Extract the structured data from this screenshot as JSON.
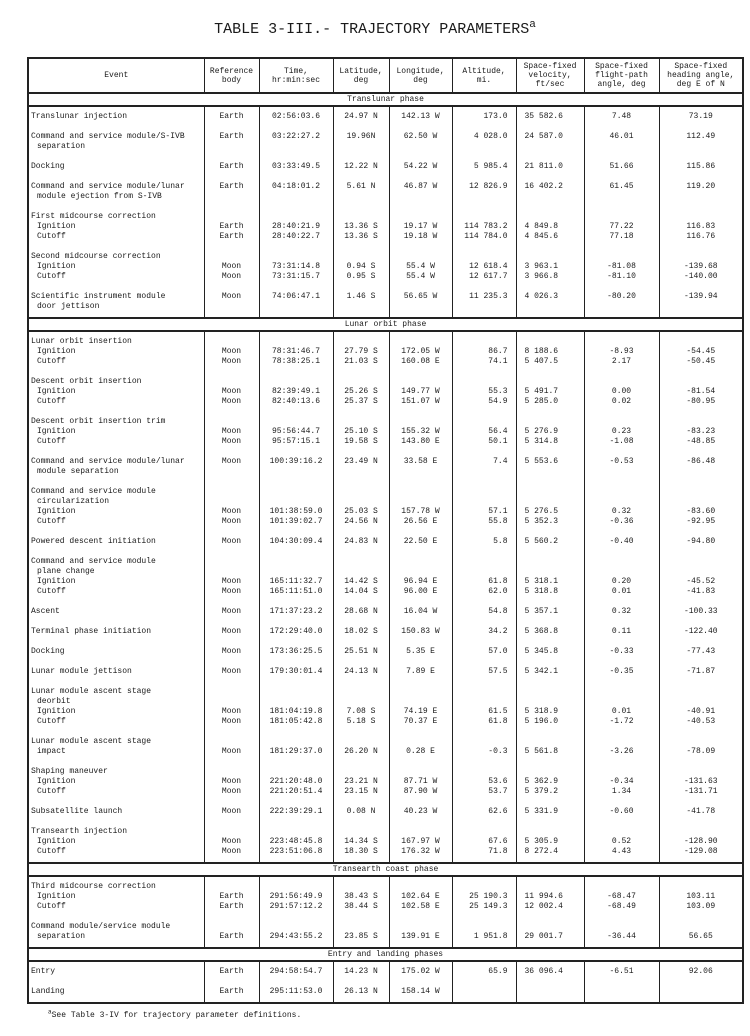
{
  "title": "TABLE 3-III.- TRAJECTORY PARAMETERS",
  "title_footnote_mark": "a",
  "columns": [
    "Event",
    "Reference body",
    "Time, hr:min:sec",
    "Latitude, deg",
    "Longitude, deg",
    "Altitude, mi.",
    "Space-fixed velocity, ft/sec",
    "Space-fixed flight-path angle, deg",
    "Space-fixed heading angle, deg E of N"
  ],
  "sections": [
    {
      "phase": "Translunar phase",
      "entries": [
        [
          {
            "event": "Translunar injection",
            "ref": "Earth",
            "time": "02:56:03.6",
            "lat": "24.97 N",
            "lon": "142.13 W",
            "alt": "173.0",
            "vel": "35 582.6",
            "fpa": "7.48",
            "hdg": "73.19"
          }
        ],
        [
          {
            "event": "Command and service module/S-IVB",
            "ref": "Earth",
            "time": "03:22:27.2",
            "lat": "19.96N",
            "lon": "62.50 W",
            "alt": "4 028.0",
            "vel": "24 587.0",
            "fpa": "46.01",
            "hdg": "112.49"
          },
          {
            "event": "separation",
            "sub": true
          }
        ],
        [
          {
            "event": "Docking",
            "ref": "Earth",
            "time": "03:33:49.5",
            "lat": "12.22 N",
            "lon": "54.22 W",
            "alt": "5 985.4",
            "vel": "21 811.0",
            "fpa": "51.66",
            "hdg": "115.86"
          }
        ],
        [
          {
            "event": "Command and service module/lunar",
            "ref": "Earth",
            "time": "04:18:01.2",
            "lat": "5.61 N",
            "lon": "46.87 W",
            "alt": "12 826.9",
            "vel": "16 402.2",
            "fpa": "61.45",
            "hdg": "119.20"
          },
          {
            "event": "module ejection from S-IVB",
            "sub": true
          }
        ],
        [
          {
            "event": "First midcourse correction"
          },
          {
            "event": "Ignition",
            "sub": true,
            "ref": "Earth",
            "time": "28:40:21.9",
            "lat": "13.36 S",
            "lon": "19.17 W",
            "alt": "114 783.2",
            "vel": "4 849.8",
            "fpa": "77.22",
            "hdg": "116.83"
          },
          {
            "event": "Cutoff",
            "sub": true,
            "ref": "Earth",
            "time": "28:40:22.7",
            "lat": "13.36 S",
            "lon": "19.18 W",
            "alt": "114 784.0",
            "vel": "4 845.6",
            "fpa": "77.18",
            "hdg": "116.76"
          }
        ],
        [
          {
            "event": "Second midcourse correction"
          },
          {
            "event": "Ignition",
            "sub": true,
            "ref": "Moon",
            "time": "73:31:14.8",
            "lat": "0.94 S",
            "lon": "55.4 W",
            "alt": "12 618.4",
            "vel": "3 963.1",
            "fpa": "-81.08",
            "hdg": "-139.68"
          },
          {
            "event": "Cutoff",
            "sub": true,
            "ref": "Moon",
            "time": "73:31:15.7",
            "lat": "0.95 S",
            "lon": "55.4 W",
            "alt": "12 617.7",
            "vel": "3 966.8",
            "fpa": "-81.10",
            "hdg": "-140.00"
          }
        ],
        [
          {
            "event": "Scientific instrument module",
            "ref": "Moon",
            "time": "74:06:47.1",
            "lat": "1.46 S",
            "lon": "56.65 W",
            "alt": "11 235.3",
            "vel": "4 026.3",
            "fpa": "-80.20",
            "hdg": "-139.94"
          },
          {
            "event": "door jettison",
            "sub": true
          }
        ]
      ]
    },
    {
      "phase": "Lunar orbit phase",
      "entries": [
        [
          {
            "event": "Lunar orbit insertion"
          },
          {
            "event": "Ignition",
            "sub": true,
            "ref": "Moon",
            "time": "78:31:46.7",
            "lat": "27.79 S",
            "lon": "172.05 W",
            "alt": "86.7",
            "vel": "8 188.6",
            "fpa": "-8.93",
            "hdg": "-54.45"
          },
          {
            "event": "Cutoff",
            "sub": true,
            "ref": "Moon",
            "time": "78:38:25.1",
            "lat": "21.03 S",
            "lon": "160.08 E",
            "alt": "74.1",
            "vel": "5 407.5",
            "fpa": "2.17",
            "hdg": "-50.45"
          }
        ],
        [
          {
            "event": "Descent orbit insertion"
          },
          {
            "event": "Ignition",
            "sub": true,
            "ref": "Moon",
            "time": "82:39:49.1",
            "lat": "25.26 S",
            "lon": "149.77 W",
            "alt": "55.3",
            "vel": "5 491.7",
            "fpa": "0.00",
            "hdg": "-81.54"
          },
          {
            "event": "Cutoff",
            "sub": true,
            "ref": "Moon",
            "time": "82:40:13.6",
            "lat": "25.37 S",
            "lon": "151.07 W",
            "alt": "54.9",
            "vel": "5 285.0",
            "fpa": "0.02",
            "hdg": "-80.95"
          }
        ],
        [
          {
            "event": "Descent orbit insertion trim"
          },
          {
            "event": "Ignition",
            "sub": true,
            "ref": "Moon",
            "time": "95:56:44.7",
            "lat": "25.10 S",
            "lon": "155.32 W",
            "alt": "56.4",
            "vel": "5 276.9",
            "fpa": "0.23",
            "hdg": "-83.23"
          },
          {
            "event": "Cutoff",
            "sub": true,
            "ref": "Moon",
            "time": "95:57:15.1",
            "lat": "19.58 S",
            "lon": "143.80 E",
            "alt": "50.1",
            "vel": "5 314.8",
            "fpa": "-1.08",
            "hdg": "-48.85"
          }
        ],
        [
          {
            "event": "Command and service module/lunar",
            "ref": "Moon",
            "time": "100:39:16.2",
            "lat": "23.49 N",
            "lon": "33.58 E",
            "alt": "7.4",
            "vel": "5 553.6",
            "fpa": "-0.53",
            "hdg": "-86.48"
          },
          {
            "event": "module separation",
            "sub": true
          }
        ],
        [
          {
            "event": "Command and service module"
          },
          {
            "event": "circularization",
            "sub": true
          },
          {
            "event": "Ignition",
            "sub": true,
            "ref": "Moon",
            "time": "101:38:59.0",
            "lat": "25.03 S",
            "lon": "157.78 W",
            "alt": "57.1",
            "vel": "5 276.5",
            "fpa": "0.32",
            "hdg": "-83.60"
          },
          {
            "event": "Cutoff",
            "sub": true,
            "ref": "Moon",
            "time": "101:39:02.7",
            "lat": "24.56 N",
            "lon": "26.56 E",
            "alt": "55.8",
            "vel": "5 352.3",
            "fpa": "-0.36",
            "hdg": "-92.95"
          }
        ],
        [
          {
            "event": "Powered descent initiation",
            "ref": "Moon",
            "time": "104:30:09.4",
            "lat": "24.83 N",
            "lon": "22.50 E",
            "alt": "5.8",
            "vel": "5 560.2",
            "fpa": "-0.40",
            "hdg": "-94.80"
          }
        ],
        [
          {
            "event": "Command and service module"
          },
          {
            "event": "plane change",
            "sub": true
          },
          {
            "event": "Ignition",
            "sub": true,
            "ref": "Moon",
            "time": "165:11:32.7",
            "lat": "14.42 S",
            "lon": "96.94 E",
            "alt": "61.8",
            "vel": "5 318.1",
            "fpa": "0.20",
            "hdg": "-45.52"
          },
          {
            "event": "Cutoff",
            "sub": true,
            "ref": "Moon",
            "time": "165:11:51.0",
            "lat": "14.04 S",
            "lon": "96.00 E",
            "alt": "62.0",
            "vel": "5 318.8",
            "fpa": "0.01",
            "hdg": "-41.83"
          }
        ],
        [
          {
            "event": "Ascent",
            "ref": "Moon",
            "time": "171:37:23.2",
            "lat": "28.68 N",
            "lon": "16.04 W",
            "alt": "54.8",
            "vel": "5 357.1",
            "fpa": "0.32",
            "hdg": "-100.33"
          }
        ],
        [
          {
            "event": "Terminal phase initiation",
            "ref": "Moon",
            "time": "172:29:40.0",
            "lat": "18.02 S",
            "lon": "150.83 W",
            "alt": "34.2",
            "vel": "5 368.8",
            "fpa": "0.11",
            "hdg": "-122.40"
          }
        ],
        [
          {
            "event": "Docking",
            "ref": "Moon",
            "time": "173:36:25.5",
            "lat": "25.51 N",
            "lon": "5.35 E",
            "alt": "57.0",
            "vel": "5 345.8",
            "fpa": "-0.33",
            "hdg": "-77.43"
          }
        ],
        [
          {
            "event": "Lunar module jettison",
            "ref": "Moon",
            "time": "179:30:01.4",
            "lat": "24.13 N",
            "lon": "7.89 E",
            "alt": "57.5",
            "vel": "5 342.1",
            "fpa": "-0.35",
            "hdg": "-71.87"
          }
        ],
        [
          {
            "event": "Lunar module ascent stage"
          },
          {
            "event": "deorbit",
            "sub": true
          },
          {
            "event": "Ignition",
            "sub": true,
            "ref": "Moon",
            "time": "181:04:19.8",
            "lat": "7.08 S",
            "lon": "74.19 E",
            "alt": "61.5",
            "vel": "5 318.9",
            "fpa": "0.01",
            "hdg": "-40.91"
          },
          {
            "event": "Cutoff",
            "sub": true,
            "ref": "Moon",
            "time": "181:05:42.8",
            "lat": "5.18 S",
            "lon": "70.37 E",
            "alt": "61.8",
            "vel": "5 196.0",
            "fpa": "-1.72",
            "hdg": "-40.53"
          }
        ],
        [
          {
            "event": "Lunar module ascent stage"
          },
          {
            "event": "impact",
            "sub": true,
            "ref": "Moon",
            "time": "181:29:37.0",
            "lat": "26.20 N",
            "lon": "0.28 E",
            "alt": "-0.3",
            "vel": "5 561.8",
            "fpa": "-3.26",
            "hdg": "-78.09"
          }
        ],
        [
          {
            "event": "Shaping maneuver"
          },
          {
            "event": "Ignition",
            "sub": true,
            "ref": "Moon",
            "time": "221:20:48.0",
            "lat": "23.21 N",
            "lon": "87.71 W",
            "alt": "53.6",
            "vel": "5 362.9",
            "fpa": "-0.34",
            "hdg": "-131.63"
          },
          {
            "event": "Cutoff",
            "sub": true,
            "ref": "Moon",
            "time": "221:20:51.4",
            "lat": "23.15 N",
            "lon": "87.90 W",
            "alt": "53.7",
            "vel": "5 379.2",
            "fpa": "1.34",
            "hdg": "-131.71"
          }
        ],
        [
          {
            "event": "Subsatellite launch",
            "ref": "Moon",
            "time": "222:39:29.1",
            "lat": "0.08 N",
            "lon": "40.23 W",
            "alt": "62.6",
            "vel": "5 331.9",
            "fpa": "-0.60",
            "hdg": "-41.78"
          }
        ],
        [
          {
            "event": "Transearth injection"
          },
          {
            "event": "Ignition",
            "sub": true,
            "ref": "Moon",
            "time": "223:48:45.8",
            "lat": "14.34 S",
            "lon": "167.97 W",
            "alt": "67.6",
            "vel": "5 305.9",
            "fpa": "0.52",
            "hdg": "-128.90"
          },
          {
            "event": "Cutoff",
            "sub": true,
            "ref": "Moon",
            "time": "223:51:06.8",
            "lat": "18.30 S",
            "lon": "176.32 W",
            "alt": "71.8",
            "vel": "8 272.4",
            "fpa": "4.43",
            "hdg": "-129.08"
          }
        ]
      ]
    },
    {
      "phase": "Transearth coast phase",
      "entries": [
        [
          {
            "event": "Third midcourse correction"
          },
          {
            "event": "Ignition",
            "sub": true,
            "ref": "Earth",
            "time": "291:56:49.9",
            "lat": "38.43 S",
            "lon": "102.64 E",
            "alt": "25 190.3",
            "vel": "11 994.6",
            "fpa": "-68.47",
            "hdg": "103.11"
          },
          {
            "event": "Cutoff",
            "sub": true,
            "ref": "Earth",
            "time": "291:57:12.2",
            "lat": "38.44 S",
            "lon": "102.58 E",
            "alt": "25 149.3",
            "vel": "12 002.4",
            "fpa": "-68.49",
            "hdg": "103.09"
          }
        ],
        [
          {
            "event": "Command module/service module"
          },
          {
            "event": "separation",
            "sub": true,
            "ref": "Earth",
            "time": "294:43:55.2",
            "lat": "23.85 S",
            "lon": "139.91 E",
            "alt": "1 951.8",
            "vel": "29 001.7",
            "fpa": "-36.44",
            "hdg": "56.65"
          }
        ]
      ]
    },
    {
      "phase": "Entry and landing phases",
      "entries": [
        [
          {
            "event": "Entry",
            "ref": "Earth",
            "time": "294:58:54.7",
            "lat": "14.23 N",
            "lon": "175.02 W",
            "alt": "65.9",
            "vel": "36 096.4",
            "fpa": "-6.51",
            "hdg": "92.06"
          }
        ],
        [
          {
            "event": "Landing",
            "ref": "Earth",
            "time": "295:11:53.0",
            "lat": "26.13 N",
            "lon": "158.14 W"
          }
        ]
      ]
    }
  ],
  "footnote_mark": "a",
  "footnote": "See Table 3-IV for trajectory parameter definitions."
}
